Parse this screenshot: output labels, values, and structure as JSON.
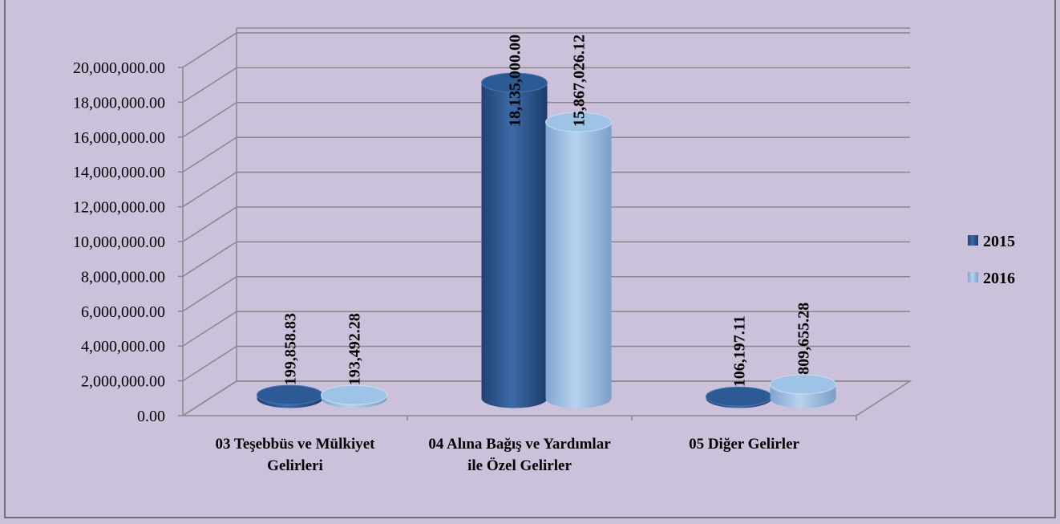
{
  "chart_data": {
    "type": "bar3d",
    "categories": [
      "03 Teşebbüs ve Mülkiyet Gelirleri",
      "04 Alına Bağış ve Yardımlar ile Özel Gelirler",
      "05 Diğer Gelirler"
    ],
    "series": [
      {
        "name": "2015",
        "color": "#2c5a94",
        "values": [
          199858.83,
          18135000,
          106197.11
        ],
        "value_labels": [
          "199,858.83",
          "18,135,000.00",
          "106,197.11"
        ]
      },
      {
        "name": "2016",
        "color": "#9dc3e6",
        "values": [
          193492.28,
          15867026.12,
          809655.28
        ],
        "value_labels": [
          "193,492.28",
          "15,867,026.12",
          "809,655.28"
        ]
      }
    ],
    "ylim": [
      0,
      20000000
    ],
    "yticks": [
      {
        "value": 0,
        "label": "0.00"
      },
      {
        "value": 2000000,
        "label": "2,000,000.00"
      },
      {
        "value": 4000000,
        "label": "4,000,000.00"
      },
      {
        "value": 6000000,
        "label": "6,000,000.00"
      },
      {
        "value": 8000000,
        "label": "8,000,000.00"
      },
      {
        "value": 10000000,
        "label": "10,000,000.00"
      },
      {
        "value": 12000000,
        "label": "12,000,000.00"
      },
      {
        "value": 14000000,
        "label": "14,000,000.00"
      },
      {
        "value": 16000000,
        "label": "16,000,000.00"
      },
      {
        "value": 18000000,
        "label": "18,000,000.00"
      },
      {
        "value": 20000000,
        "label": "20,000,000.00"
      }
    ],
    "grid": true,
    "legend": "right"
  }
}
